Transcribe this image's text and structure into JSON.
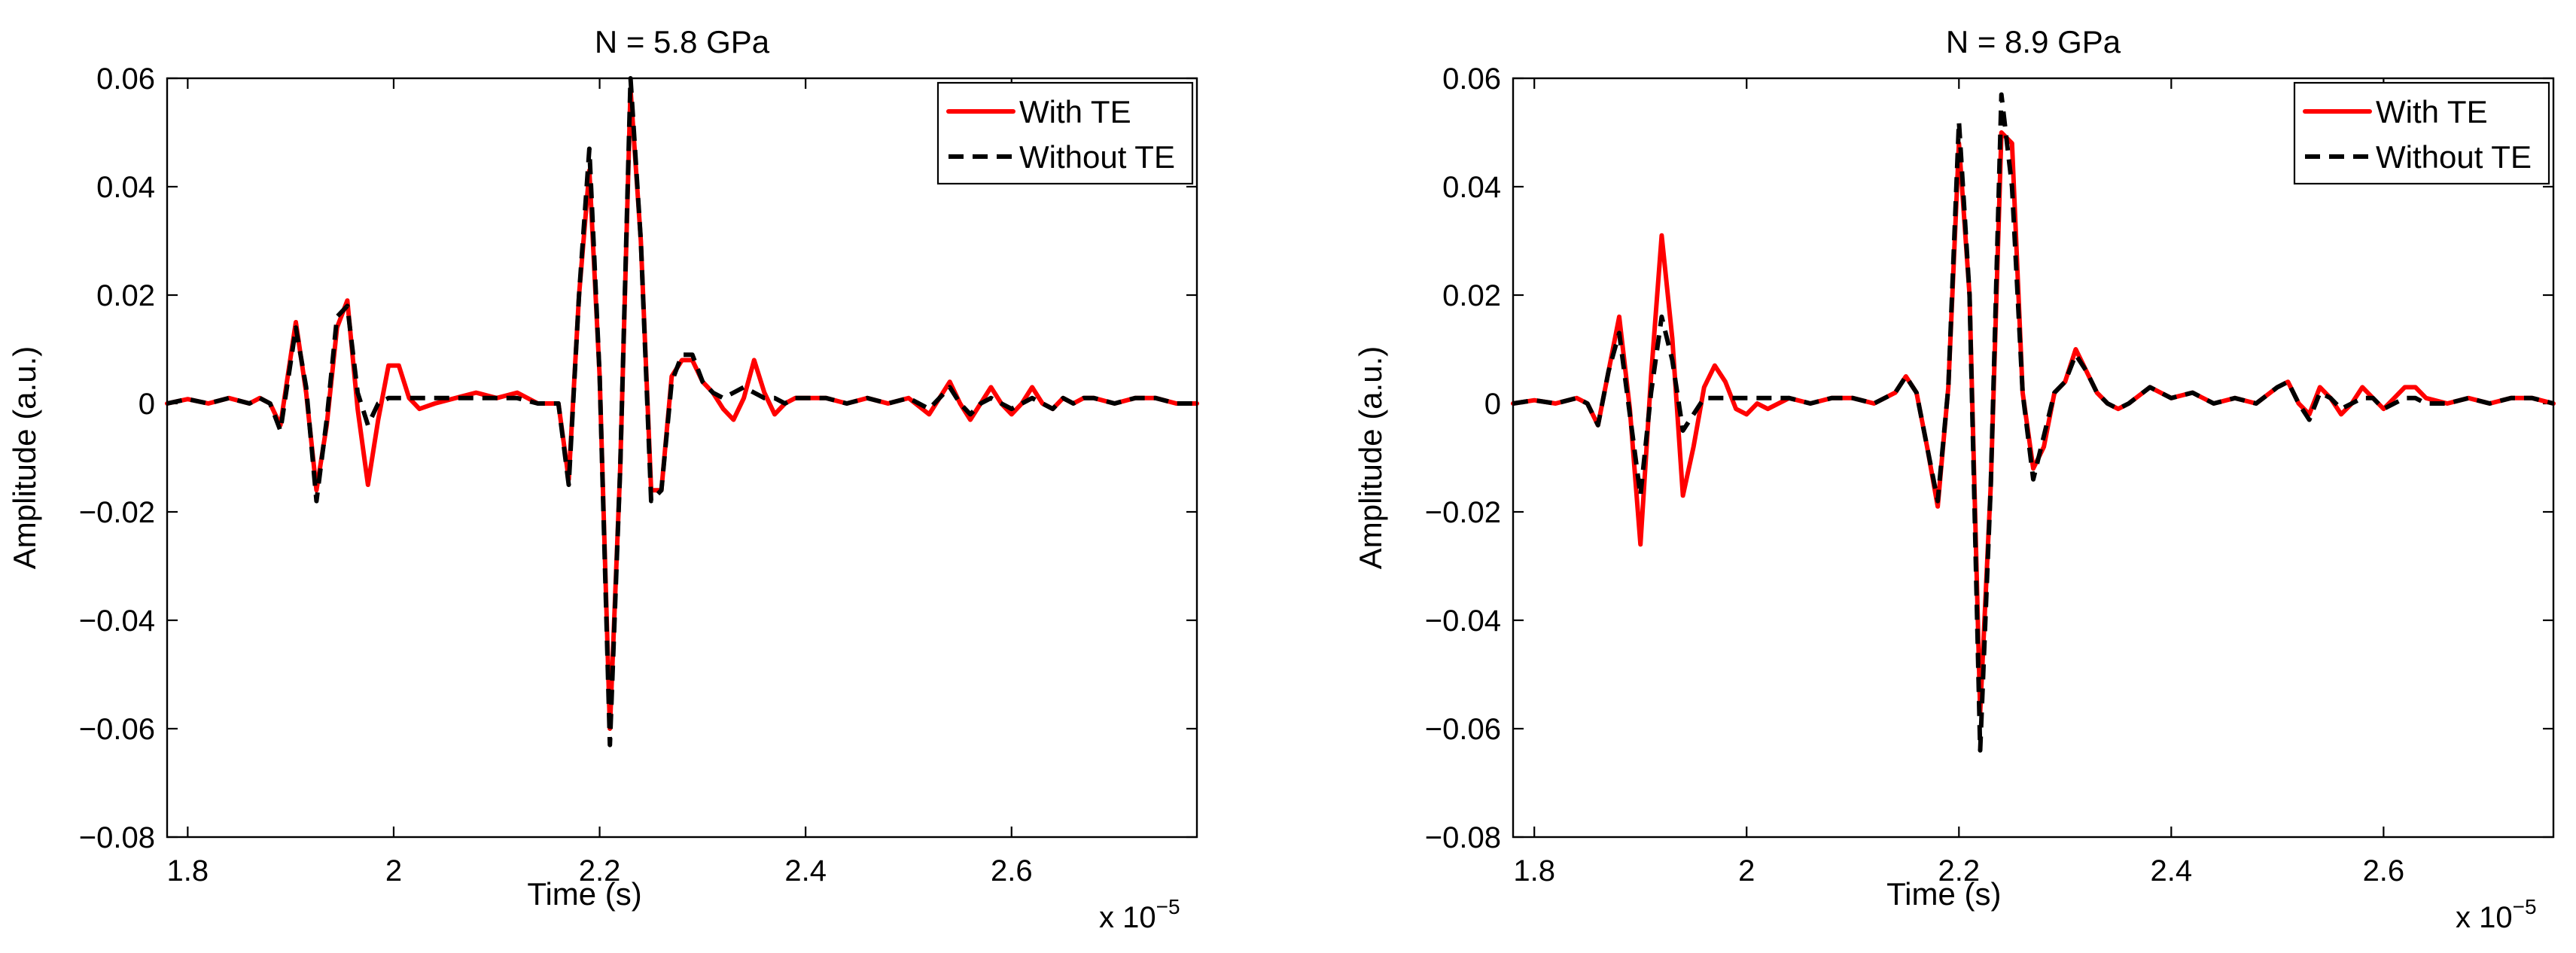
{
  "figure": {
    "type": "two-panel line chart"
  },
  "chart_data": [
    {
      "type": "line",
      "title": "N = 5.8 GPa",
      "xlabel": "Time (s)",
      "ylabel": "Amplitude (a.u.)",
      "x_multiplier_label": "x 10",
      "x_multiplier_exponent": "−5",
      "xlim": [
        1.78,
        2.78
      ],
      "ylim": [
        -0.08,
        0.06
      ],
      "xticks": [
        1.8,
        2.0,
        2.2,
        2.4,
        2.6
      ],
      "xtick_labels": [
        "1.8",
        "2",
        "2.2",
        "2.4",
        "2.6"
      ],
      "yticks": [
        -0.08,
        -0.06,
        -0.04,
        -0.02,
        0,
        0.02,
        0.04,
        0.06
      ],
      "ytick_labels": [
        "−0.08",
        "−0.06",
        "−0.04",
        "−0.02",
        "0",
        "0.02",
        "0.04",
        "0.06"
      ],
      "grid": false,
      "legend_position": "top-right",
      "series": [
        {
          "name": "With TE",
          "color": "#ff0000",
          "style": "solid",
          "x": [
            1.78,
            1.8,
            1.82,
            1.84,
            1.86,
            1.87,
            1.88,
            1.89,
            1.905,
            1.915,
            1.925,
            1.935,
            1.945,
            1.955,
            1.965,
            1.975,
            1.985,
            1.995,
            2.005,
            2.015,
            2.025,
            2.04,
            2.06,
            2.08,
            2.1,
            2.12,
            2.14,
            2.16,
            2.17,
            2.18,
            2.19,
            2.2,
            2.21,
            2.22,
            2.23,
            2.24,
            2.25,
            2.26,
            2.27,
            2.28,
            2.29,
            2.3,
            2.31,
            2.32,
            2.33,
            2.34,
            2.35,
            2.36,
            2.37,
            2.38,
            2.39,
            2.4,
            2.42,
            2.44,
            2.46,
            2.48,
            2.5,
            2.52,
            2.54,
            2.55,
            2.56,
            2.57,
            2.58,
            2.59,
            2.6,
            2.61,
            2.62,
            2.63,
            2.64,
            2.65,
            2.66,
            2.67,
            2.68,
            2.7,
            2.72,
            2.74,
            2.76,
            2.78
          ],
          "y": [
            0,
            0.0008,
            0,
            0.001,
            0,
            0.001,
            0,
            -0.004,
            0.015,
            0.002,
            -0.016,
            -0.004,
            0.014,
            0.019,
            -0.001,
            -0.015,
            -0.003,
            0.007,
            0.007,
            0.001,
            -0.001,
            0,
            0.001,
            0.002,
            0.001,
            0.002,
            0,
            0,
            -0.014,
            0.02,
            0.043,
            0.005,
            -0.06,
            -0.012,
            0.058,
            0.03,
            -0.016,
            -0.016,
            0.005,
            0.008,
            0.008,
            0.004,
            0.002,
            -0.001,
            -0.003,
            0.001,
            0.008,
            0.002,
            -0.002,
            0,
            0.001,
            0.001,
            0.001,
            0,
            0.001,
            0,
            0.001,
            -0.002,
            0.004,
            0,
            -0.003,
            0,
            0.003,
            0,
            -0.002,
            0,
            0.003,
            0,
            -0.001,
            0.001,
            0,
            0.001,
            0.001,
            0,
            0.001,
            0.001,
            0,
            0
          ]
        },
        {
          "name": "Without TE",
          "color": "#000000",
          "style": "dashed",
          "x": [
            1.78,
            1.8,
            1.82,
            1.84,
            1.86,
            1.87,
            1.88,
            1.89,
            1.905,
            1.915,
            1.925,
            1.935,
            1.945,
            1.955,
            1.965,
            1.975,
            1.985,
            1.995,
            2.005,
            2.015,
            2.025,
            2.04,
            2.06,
            2.08,
            2.1,
            2.12,
            2.14,
            2.16,
            2.17,
            2.18,
            2.19,
            2.2,
            2.21,
            2.22,
            2.23,
            2.24,
            2.25,
            2.26,
            2.27,
            2.28,
            2.29,
            2.3,
            2.31,
            2.32,
            2.33,
            2.34,
            2.35,
            2.36,
            2.37,
            2.38,
            2.39,
            2.4,
            2.42,
            2.44,
            2.46,
            2.48,
            2.5,
            2.52,
            2.54,
            2.55,
            2.56,
            2.57,
            2.58,
            2.59,
            2.6,
            2.61,
            2.62,
            2.63,
            2.64,
            2.65,
            2.66,
            2.67,
            2.68,
            2.7,
            2.72,
            2.74,
            2.76,
            2.78
          ],
          "y": [
            0,
            0.0008,
            0,
            0.001,
            0,
            0.001,
            0,
            -0.005,
            0.014,
            0.003,
            -0.018,
            -0.003,
            0.016,
            0.018,
            0.002,
            -0.004,
            0,
            0.001,
            0.001,
            0.001,
            0.001,
            0.001,
            0.001,
            0.001,
            0.001,
            0.001,
            0,
            0,
            -0.015,
            0.02,
            0.047,
            0.005,
            -0.063,
            -0.012,
            0.06,
            0.03,
            -0.018,
            -0.016,
            0.004,
            0.009,
            0.009,
            0.004,
            0.002,
            0.001,
            0.002,
            0.003,
            0.002,
            0.001,
            0.001,
            0,
            0.001,
            0.001,
            0.001,
            0,
            0.001,
            0,
            0.001,
            -0.001,
            0.003,
            0,
            -0.002,
            0,
            0.001,
            0,
            -0.001,
            0,
            0.001,
            0,
            -0.001,
            0.001,
            0,
            0.001,
            0.001,
            0,
            0.001,
            0.001,
            0,
            0
          ]
        }
      ]
    },
    {
      "type": "line",
      "title": "N = 8.9 GPa",
      "xlabel": "Time (s)",
      "ylabel": "Amplitude (a.u.)",
      "x_multiplier_label": "x 10",
      "x_multiplier_exponent": "−5",
      "xlim": [
        1.78,
        2.76
      ],
      "ylim": [
        -0.08,
        0.06
      ],
      "xticks": [
        1.8,
        2.0,
        2.2,
        2.4,
        2.6
      ],
      "xtick_labels": [
        "1.8",
        "2",
        "2.2",
        "2.4",
        "2.6"
      ],
      "yticks": [
        -0.08,
        -0.06,
        -0.04,
        -0.02,
        0,
        0.02,
        0.04,
        0.06
      ],
      "ytick_labels": [
        "−0.08",
        "−0.06",
        "−0.04",
        "−0.02",
        "0",
        "0.02",
        "0.04",
        "0.06"
      ],
      "grid": false,
      "legend_position": "top-right",
      "series": [
        {
          "name": "With TE",
          "color": "#ff0000",
          "style": "solid",
          "x": [
            1.78,
            1.8,
            1.82,
            1.84,
            1.85,
            1.86,
            1.87,
            1.88,
            1.89,
            1.9,
            1.91,
            1.92,
            1.93,
            1.94,
            1.95,
            1.96,
            1.97,
            1.98,
            1.99,
            2.0,
            2.01,
            2.02,
            2.04,
            2.06,
            2.08,
            2.1,
            2.12,
            2.14,
            2.15,
            2.16,
            2.17,
            2.18,
            2.19,
            2.2,
            2.21,
            2.22,
            2.23,
            2.24,
            2.25,
            2.26,
            2.27,
            2.28,
            2.29,
            2.3,
            2.31,
            2.32,
            2.33,
            2.34,
            2.35,
            2.36,
            2.38,
            2.4,
            2.42,
            2.44,
            2.46,
            2.48,
            2.5,
            2.51,
            2.52,
            2.53,
            2.54,
            2.55,
            2.56,
            2.57,
            2.58,
            2.59,
            2.6,
            2.61,
            2.62,
            2.63,
            2.64,
            2.66,
            2.68,
            2.7,
            2.72,
            2.74,
            2.76
          ],
          "y": [
            0,
            0.0006,
            0,
            0.001,
            0,
            -0.004,
            0.006,
            0.016,
            -0.001,
            -0.026,
            0.005,
            0.031,
            0.012,
            -0.017,
            -0.008,
            0.003,
            0.007,
            0.004,
            -0.001,
            -0.002,
            0,
            -0.001,
            0.001,
            0,
            0.001,
            0.001,
            0,
            0.002,
            0.005,
            0.002,
            -0.008,
            -0.019,
            0.003,
            0.048,
            0.02,
            -0.057,
            -0.015,
            0.05,
            0.048,
            0.002,
            -0.012,
            -0.008,
            0.002,
            0.004,
            0.01,
            0.006,
            0.002,
            0,
            -0.001,
            0,
            0.003,
            0.001,
            0.002,
            0,
            0.001,
            0,
            0.003,
            0.004,
            0,
            -0.002,
            0.003,
            0.001,
            -0.002,
            0,
            0.003,
            0.001,
            -0.001,
            0.001,
            0.003,
            0.003,
            0.001,
            0,
            0.001,
            0,
            0.001,
            0.001,
            0
          ]
        },
        {
          "name": "Without TE",
          "color": "#000000",
          "style": "dashed",
          "x": [
            1.78,
            1.8,
            1.82,
            1.84,
            1.85,
            1.86,
            1.87,
            1.88,
            1.89,
            1.9,
            1.91,
            1.92,
            1.93,
            1.94,
            1.95,
            1.96,
            1.97,
            1.98,
            1.99,
            2.0,
            2.01,
            2.02,
            2.04,
            2.06,
            2.08,
            2.1,
            2.12,
            2.14,
            2.15,
            2.16,
            2.17,
            2.18,
            2.19,
            2.2,
            2.21,
            2.22,
            2.23,
            2.24,
            2.25,
            2.26,
            2.27,
            2.28,
            2.29,
            2.3,
            2.31,
            2.32,
            2.33,
            2.34,
            2.35,
            2.36,
            2.38,
            2.4,
            2.42,
            2.44,
            2.46,
            2.48,
            2.5,
            2.51,
            2.52,
            2.53,
            2.54,
            2.55,
            2.56,
            2.57,
            2.58,
            2.59,
            2.6,
            2.61,
            2.62,
            2.63,
            2.64,
            2.66,
            2.68,
            2.7,
            2.72,
            2.74,
            2.76
          ],
          "y": [
            0,
            0.0006,
            0,
            0.001,
            0,
            -0.004,
            0.006,
            0.013,
            -0.002,
            -0.017,
            0.002,
            0.016,
            0.008,
            -0.005,
            -0.002,
            0.001,
            0.001,
            0.001,
            0.001,
            0.001,
            0.001,
            0.001,
            0.001,
            0,
            0.001,
            0.001,
            0,
            0.002,
            0.005,
            0.002,
            -0.008,
            -0.018,
            0.003,
            0.052,
            0.02,
            -0.064,
            -0.015,
            0.057,
            0.04,
            0.002,
            -0.014,
            -0.006,
            0.002,
            0.004,
            0.009,
            0.006,
            0.002,
            0,
            -0.001,
            0,
            0.003,
            0.001,
            0.002,
            0,
            0.001,
            0,
            0.003,
            0.004,
            0,
            -0.003,
            0.002,
            0.001,
            -0.001,
            0,
            0.001,
            0.001,
            -0.001,
            0,
            0.001,
            0.001,
            0,
            0,
            0.001,
            0,
            0.001,
            0.001,
            0
          ]
        }
      ]
    }
  ]
}
